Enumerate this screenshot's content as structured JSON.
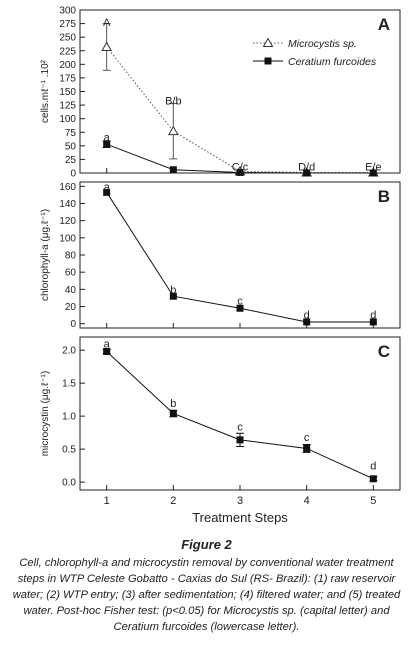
{
  "figure": {
    "title": "Figure 2",
    "caption": "Cell, chlorophyll-a and microcystin removal by conventional water treatment steps in WTP Celeste Gobatto - Caxias do Sul (RS- Brazil): (1) raw reservoir water; (2) WTP entry; (3) after sedimentation; (4) filtered water; and (5) treated water. Post-hoc Fisher test: (p<0.05) for Microcystis sp. (capital letter) and Ceratium furcoides (lowercase letter)."
  },
  "chart_data": [
    {
      "panel": "A",
      "type": "line",
      "ylabel": "cells.mℓ⁻¹ .10²",
      "xlim": [
        0.6,
        5.4
      ],
      "ylim": [
        0,
        300
      ],
      "yticks": [
        0,
        25,
        50,
        75,
        100,
        125,
        150,
        175,
        200,
        225,
        250,
        275,
        300
      ],
      "legend_position": "top-right",
      "x": [
        1,
        2,
        3,
        4,
        5
      ],
      "series": [
        {
          "name": "Microcystis sp.",
          "style": "dotted",
          "marker": "open-triangle",
          "color": "#555555",
          "values": [
            232,
            77,
            3,
            1,
            1
          ],
          "error": [
            43,
            51,
            0,
            0,
            0
          ]
        },
        {
          "name": "Ceratium furcoides",
          "style": "solid",
          "marker": "filled-square",
          "color": "#111111",
          "values": [
            53,
            6,
            1,
            0,
            0
          ],
          "error": [
            6,
            0,
            0,
            0,
            0
          ]
        }
      ],
      "annotations": [
        {
          "x": 1,
          "y": 278,
          "text": "A"
        },
        {
          "x": 2,
          "y": 133,
          "text": "B/b"
        },
        {
          "x": 3,
          "y": 12,
          "text": "C/c"
        },
        {
          "x": 4,
          "y": 12,
          "text": "D/d"
        },
        {
          "x": 5,
          "y": 12,
          "text": "E/e"
        },
        {
          "x": 1,
          "y": 66,
          "text": "a"
        }
      ]
    },
    {
      "panel": "B",
      "type": "line",
      "ylabel": "chlorophyll-a (μg.ℓ⁻¹)",
      "xlim": [
        0.6,
        5.4
      ],
      "ylim": [
        -5,
        165
      ],
      "yticks": [
        0,
        20,
        40,
        60,
        80,
        100,
        120,
        140,
        160
      ],
      "x": [
        1,
        2,
        3,
        4,
        5
      ],
      "series": [
        {
          "name": "",
          "style": "solid",
          "marker": "filled-square",
          "color": "#111111",
          "values": [
            153,
            32,
            18,
            2,
            2
          ],
          "error": [
            0,
            0,
            0,
            0,
            0
          ]
        }
      ],
      "annotations": [
        {
          "x": 1,
          "y": 160,
          "text": "a"
        },
        {
          "x": 2,
          "y": 40,
          "text": "b"
        },
        {
          "x": 3,
          "y": 27,
          "text": "c"
        },
        {
          "x": 4,
          "y": 11,
          "text": "d"
        },
        {
          "x": 5,
          "y": 11,
          "text": "d"
        }
      ]
    },
    {
      "panel": "C",
      "type": "line",
      "ylabel": "microcystin (μg.ℓ⁻¹)",
      "xlabel": "Treatment Steps",
      "xlim": [
        0.6,
        5.4
      ],
      "ylim": [
        -0.12,
        2.2
      ],
      "yticks": [
        0.0,
        0.5,
        1.0,
        1.5,
        2.0
      ],
      "xticks": [
        1,
        2,
        3,
        4,
        5
      ],
      "x": [
        1,
        2,
        3,
        4,
        5
      ],
      "series": [
        {
          "name": "",
          "style": "solid",
          "marker": "filled-square",
          "color": "#111111",
          "values": [
            1.98,
            1.04,
            0.64,
            0.51,
            0.05
          ],
          "error": [
            0.03,
            0.05,
            0.1,
            0.06,
            0.03
          ]
        }
      ],
      "annotations": [
        {
          "x": 1,
          "y": 2.1,
          "text": "a"
        },
        {
          "x": 2,
          "y": 1.2,
          "text": "b"
        },
        {
          "x": 3,
          "y": 0.84,
          "text": "c"
        },
        {
          "x": 4,
          "y": 0.68,
          "text": "c"
        },
        {
          "x": 5,
          "y": 0.25,
          "text": "d"
        }
      ]
    }
  ]
}
